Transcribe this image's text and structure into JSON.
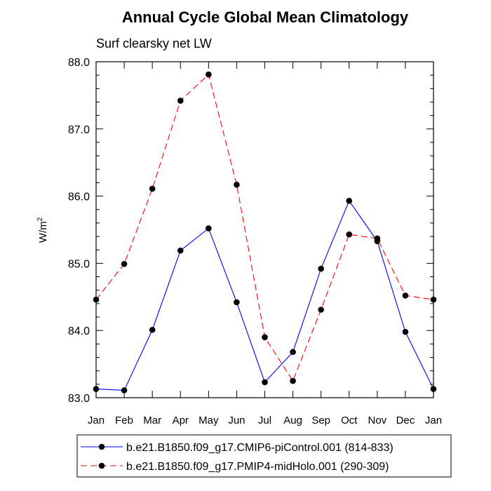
{
  "chart_data": {
    "type": "line",
    "title": "Annual Cycle Global Mean Climatology",
    "subtitle": "Surf clearsky net LW",
    "ylabel_base": "W/m",
    "ylabel_exp": "2",
    "xlabel": "",
    "categories": [
      "Jan",
      "Feb",
      "Mar",
      "Apr",
      "May",
      "Jun",
      "Jul",
      "Aug",
      "Sep",
      "Oct",
      "Nov",
      "Dec",
      "Jan"
    ],
    "ylim": [
      83.0,
      88.0
    ],
    "yticks": [
      83.0,
      84.0,
      85.0,
      86.0,
      87.0,
      88.0
    ],
    "ytick_labels": [
      "83.0",
      "84.0",
      "85.0",
      "86.0",
      "87.0",
      "88.0"
    ],
    "grid": false,
    "legend_position": "bottom",
    "series": [
      {
        "name": "b.e21.B1850.f09_g17.CMIP6-piControl.001 (814-833)",
        "color": "#0000ff",
        "dash": "solid",
        "values": [
          83.13,
          83.11,
          84.01,
          85.19,
          85.52,
          84.42,
          83.23,
          83.68,
          84.92,
          85.93,
          85.33,
          83.98,
          83.13
        ]
      },
      {
        "name": "b.e21.B1850.f09_g17.PMIP4-midHolo.001 (290-309)",
        "color": "#ff0000",
        "dash": "dashed",
        "values": [
          84.46,
          84.99,
          86.11,
          87.42,
          87.81,
          86.17,
          83.9,
          83.25,
          84.31,
          85.43,
          85.37,
          84.52,
          84.46
        ]
      }
    ]
  }
}
